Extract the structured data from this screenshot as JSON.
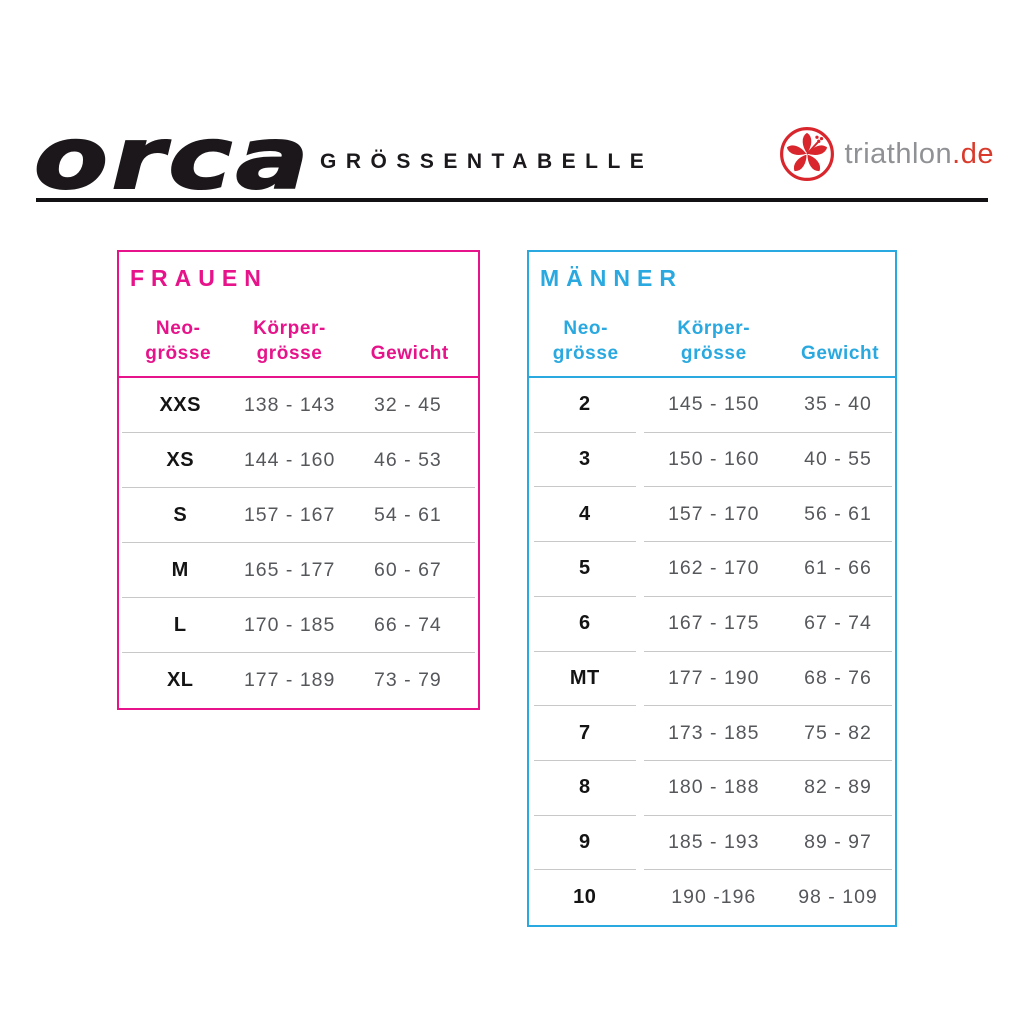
{
  "header": {
    "brand": "orca",
    "title": "GRÖSSENTABELLE",
    "partner": {
      "name": "triathlon",
      "tld": ".de",
      "icon": "hibiscus-flower-icon"
    },
    "colors": {
      "brand_black": "#1b171a",
      "partner_gray": "#8f9194",
      "partner_red": "#d93a2b",
      "women_accent": "#e6138b",
      "men_accent": "#2aa9e0",
      "value_gray": "#55575b",
      "separator_gray": "#c8c8c8"
    }
  },
  "chart_data": [
    {
      "type": "table",
      "title": "FRAUEN",
      "accent_color": "#e6138b",
      "columns": [
        "Neo-\ngrösse",
        "Körper-\ngrösse",
        "Gewicht"
      ],
      "rows": [
        [
          "XXS",
          "138 - 143",
          "32 - 45"
        ],
        [
          "XS",
          "144 - 160",
          "46 - 53"
        ],
        [
          "S",
          "157 - 167",
          "54 - 61"
        ],
        [
          "M",
          "165 - 177",
          "60 - 67"
        ],
        [
          "L",
          "170 - 185",
          "66 - 74"
        ],
        [
          "XL",
          "177 - 189",
          "73 - 79"
        ]
      ]
    },
    {
      "type": "table",
      "title": "MÄNNER",
      "accent_color": "#2aa9e0",
      "columns": [
        "Neo-\ngrösse",
        "Körper-\ngrösse",
        "Gewicht"
      ],
      "rows": [
        [
          "2",
          "145 - 150",
          "35 - 40"
        ],
        [
          "3",
          "150 - 160",
          "40 - 55"
        ],
        [
          "4",
          "157 - 170",
          "56 - 61"
        ],
        [
          "5",
          "162 - 170",
          "61 - 66"
        ],
        [
          "6",
          "167 - 175",
          "67 - 74"
        ],
        [
          "MT",
          "177 - 190",
          "68 - 76"
        ],
        [
          "7",
          "173 - 185",
          "75 - 82"
        ],
        [
          "8",
          "180 - 188",
          "82 - 89"
        ],
        [
          "9",
          "185 - 193",
          "89 - 97"
        ],
        [
          "10",
          "190 -196",
          "98 - 109"
        ]
      ]
    }
  ]
}
